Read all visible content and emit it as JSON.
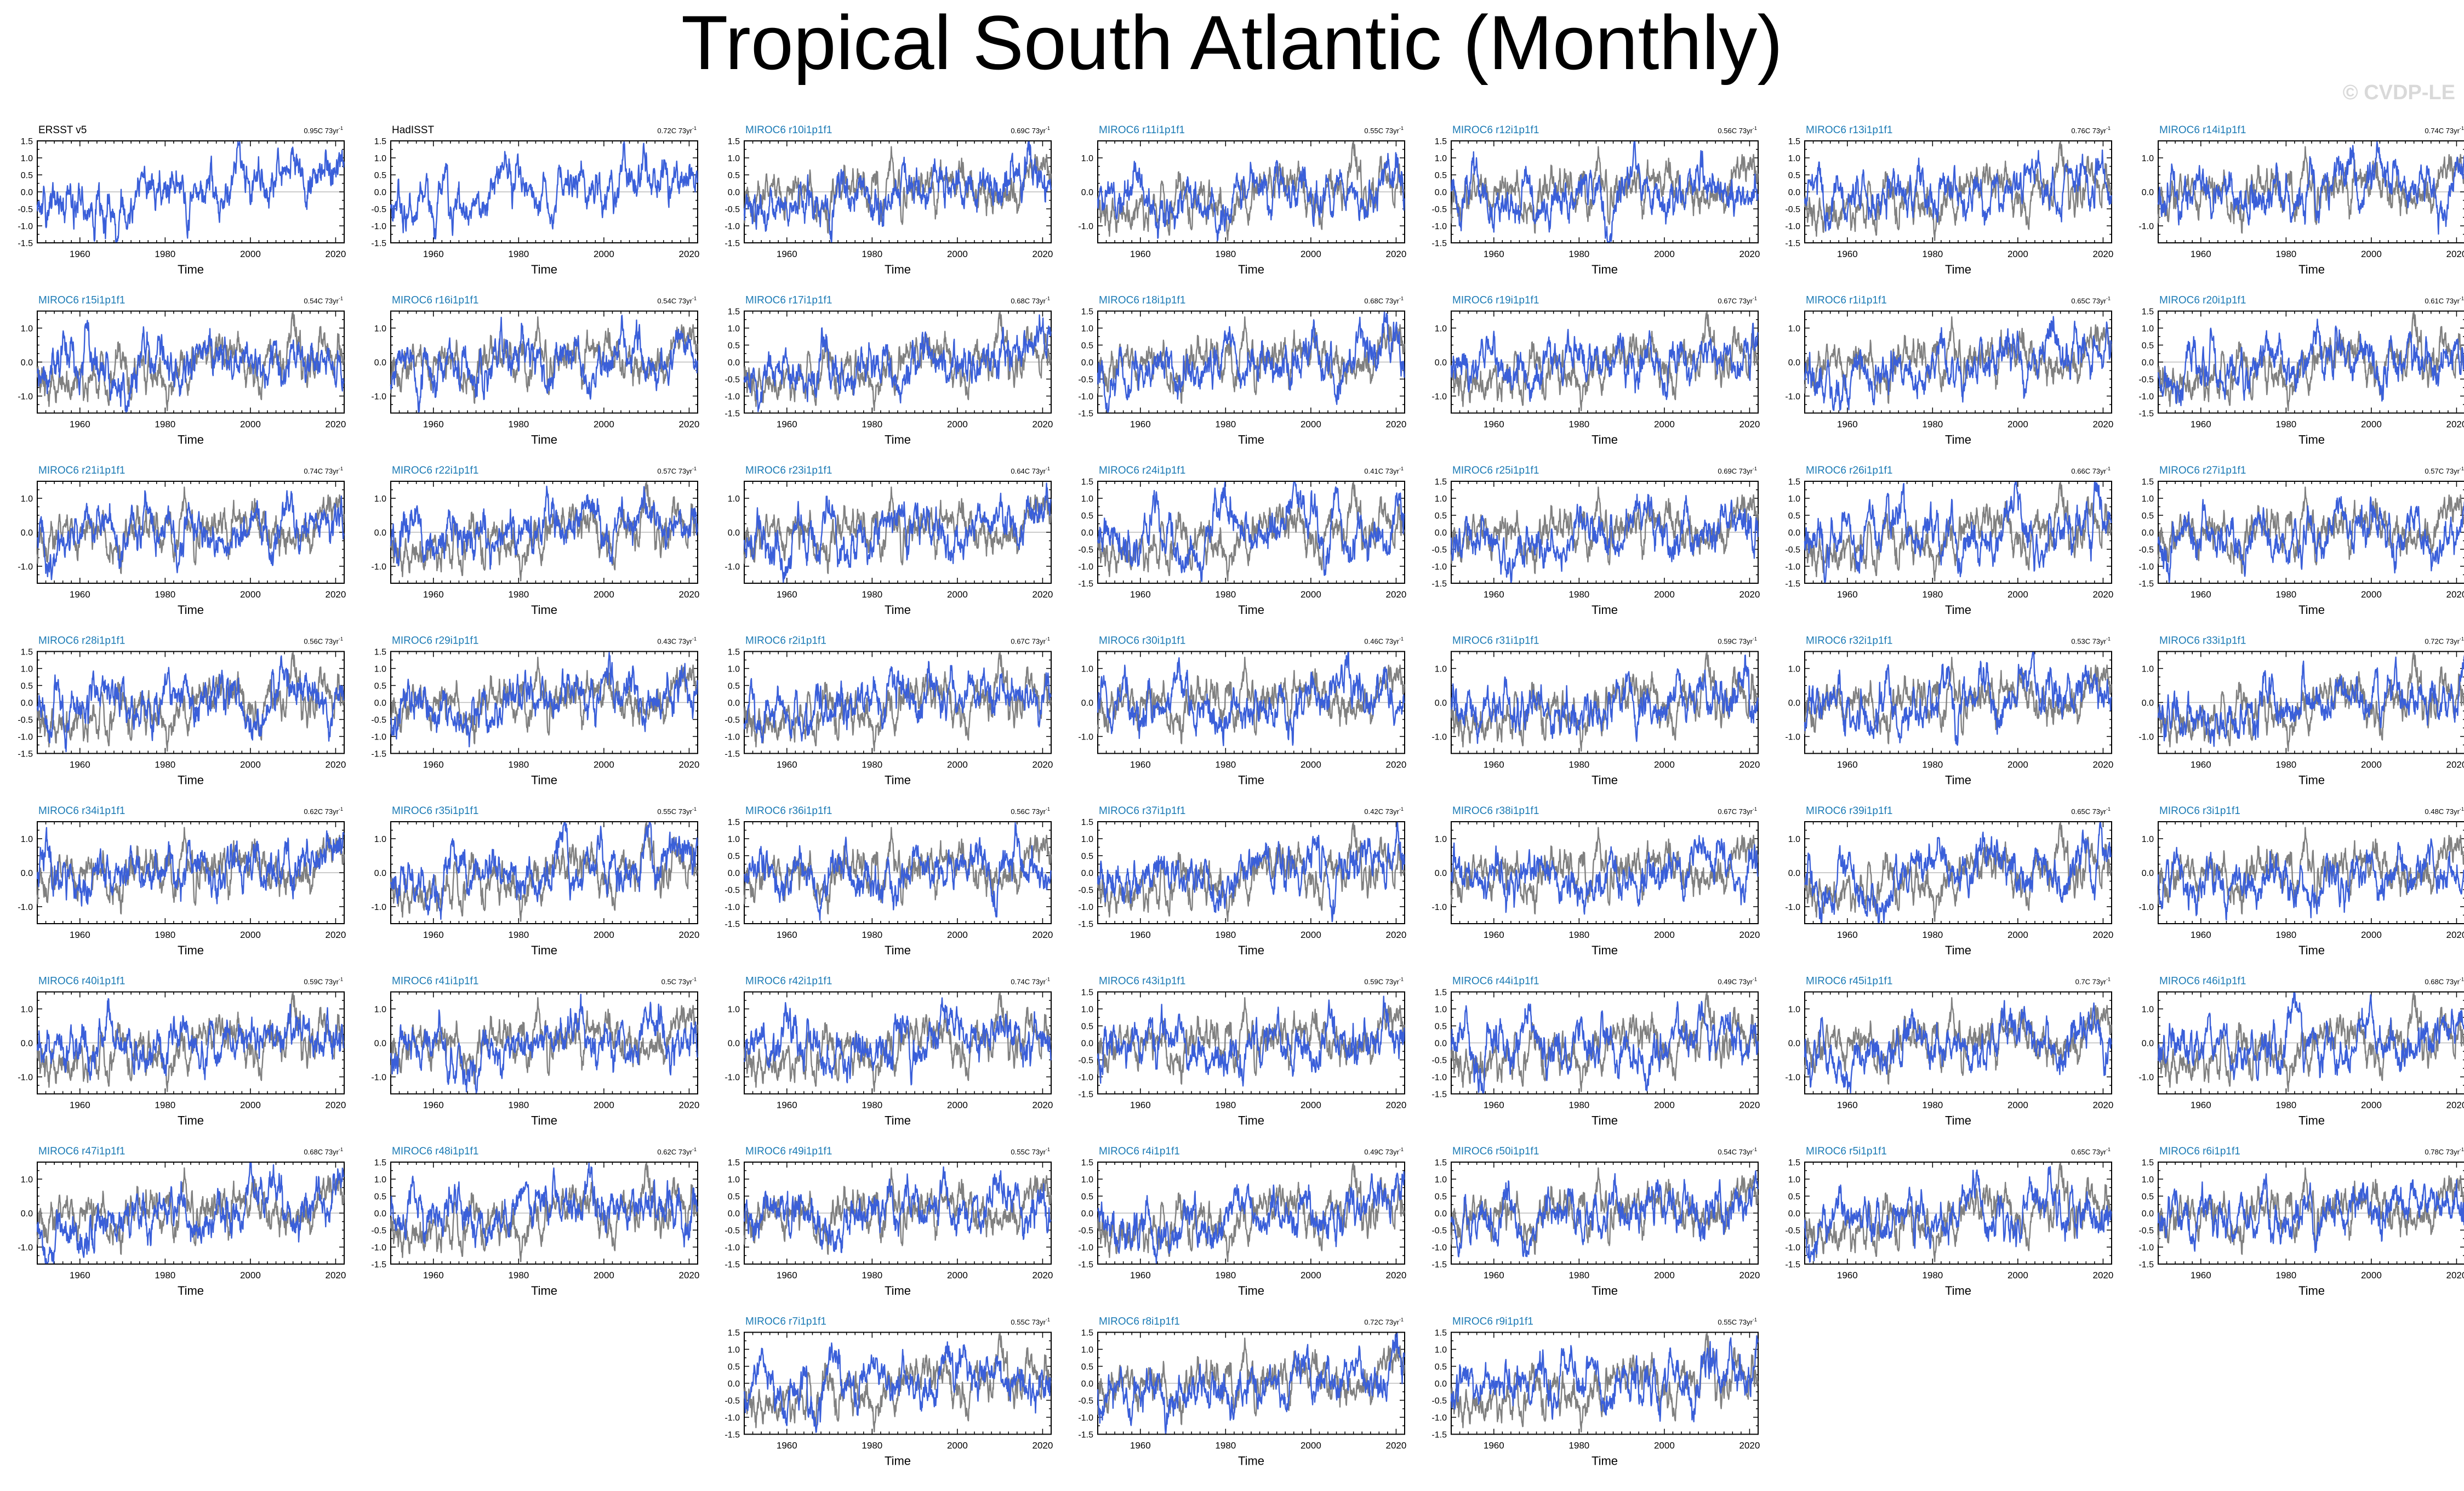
{
  "figure": {
    "title": "Tropical South Atlantic (Monthly)",
    "credit": "© CVDP-LE",
    "colors": {
      "model": "#3a5fd9",
      "observed": "#808080",
      "model_label": "#1a7ab5",
      "obs_label": "#000000",
      "axis": "#000000"
    }
  },
  "chart_data": {
    "type": "line",
    "description_axes": "shared",
    "xlabel": "Time",
    "xlim": [
      1950,
      2022
    ],
    "xticks": [
      1960,
      1980,
      2000,
      2020
    ],
    "ylim": [
      -1.5,
      1.5
    ],
    "yticks_fine": [
      "1.5",
      "1.0",
      "0.5",
      "0.0",
      "-0.5",
      "-1.0",
      "-1.5"
    ],
    "yticks_coarse": [
      "1.0",
      "0.0",
      "-1.0"
    ],
    "trend_unit": "73yr",
    "panels": [
      {
        "name": "ERSST v5",
        "trend": "0.95C 73yr",
        "obs": true,
        "yfine": true
      },
      {
        "name": "HadISST",
        "trend": "0.72C 73yr",
        "obs": true,
        "yfine": true
      },
      {
        "name": "MIROC6 r10i1p1f1",
        "trend": "0.69C 73yr",
        "yfine": true
      },
      {
        "name": "MIROC6 r11i1p1f1",
        "trend": "0.55C 73yr",
        "yfine": false
      },
      {
        "name": "MIROC6 r12i1p1f1",
        "trend": "0.56C 73yr",
        "yfine": true
      },
      {
        "name": "MIROC6 r13i1p1f1",
        "trend": "0.76C 73yr",
        "yfine": true
      },
      {
        "name": "MIROC6 r14i1p1f1",
        "trend": "0.74C 73yr",
        "yfine": false
      },
      {
        "name": "MIROC6 r15i1p1f1",
        "trend": "0.54C 73yr",
        "yfine": false
      },
      {
        "name": "MIROC6 r16i1p1f1",
        "trend": "0.54C 73yr",
        "yfine": false
      },
      {
        "name": "MIROC6 r17i1p1f1",
        "trend": "0.68C 73yr",
        "yfine": true
      },
      {
        "name": "MIROC6 r18i1p1f1",
        "trend": "0.68C 73yr",
        "yfine": true
      },
      {
        "name": "MIROC6 r19i1p1f1",
        "trend": "0.67C 73yr",
        "yfine": false
      },
      {
        "name": "MIROC6 r1i1p1f1",
        "trend": "0.65C 73yr",
        "yfine": false
      },
      {
        "name": "MIROC6 r20i1p1f1",
        "trend": "0.61C 73yr",
        "yfine": true
      },
      {
        "name": "MIROC6 r21i1p1f1",
        "trend": "0.74C 73yr",
        "yfine": false
      },
      {
        "name": "MIROC6 r22i1p1f1",
        "trend": "0.57C 73yr",
        "yfine": false
      },
      {
        "name": "MIROC6 r23i1p1f1",
        "trend": "0.64C 73yr",
        "yfine": false
      },
      {
        "name": "MIROC6 r24i1p1f1",
        "trend": "0.41C 73yr",
        "yfine": true
      },
      {
        "name": "MIROC6 r25i1p1f1",
        "trend": "0.69C 73yr",
        "yfine": true
      },
      {
        "name": "MIROC6 r26i1p1f1",
        "trend": "0.66C 73yr",
        "yfine": true
      },
      {
        "name": "MIROC6 r27i1p1f1",
        "trend": "0.57C 73yr",
        "yfine": true
      },
      {
        "name": "MIROC6 r28i1p1f1",
        "trend": "0.56C 73yr",
        "yfine": true
      },
      {
        "name": "MIROC6 r29i1p1f1",
        "trend": "0.43C 73yr",
        "yfine": true
      },
      {
        "name": "MIROC6 r2i1p1f1",
        "trend": "0.67C 73yr",
        "yfine": true
      },
      {
        "name": "MIROC6 r30i1p1f1",
        "trend": "0.46C 73yr",
        "yfine": false
      },
      {
        "name": "MIROC6 r31i1p1f1",
        "trend": "0.59C 73yr",
        "yfine": false
      },
      {
        "name": "MIROC6 r32i1p1f1",
        "trend": "0.53C 73yr",
        "yfine": false
      },
      {
        "name": "MIROC6 r33i1p1f1",
        "trend": "0.72C 73yr",
        "yfine": false
      },
      {
        "name": "MIROC6 r34i1p1f1",
        "trend": "0.62C 73yr",
        "yfine": false
      },
      {
        "name": "MIROC6 r35i1p1f1",
        "trend": "0.55C 73yr",
        "yfine": false
      },
      {
        "name": "MIROC6 r36i1p1f1",
        "trend": "0.56C 73yr",
        "yfine": true
      },
      {
        "name": "MIROC6 r37i1p1f1",
        "trend": "0.42C 73yr",
        "yfine": true
      },
      {
        "name": "MIROC6 r38i1p1f1",
        "trend": "0.67C 73yr",
        "yfine": false
      },
      {
        "name": "MIROC6 r39i1p1f1",
        "trend": "0.65C 73yr",
        "yfine": false
      },
      {
        "name": "MIROC6 r3i1p1f1",
        "trend": "0.48C 73yr",
        "yfine": false
      },
      {
        "name": "MIROC6 r40i1p1f1",
        "trend": "0.59C 73yr",
        "yfine": false
      },
      {
        "name": "MIROC6 r41i1p1f1",
        "trend": "0.5C 73yr",
        "yfine": false
      },
      {
        "name": "MIROC6 r42i1p1f1",
        "trend": "0.74C 73yr",
        "yfine": false
      },
      {
        "name": "MIROC6 r43i1p1f1",
        "trend": "0.59C 73yr",
        "yfine": true
      },
      {
        "name": "MIROC6 r44i1p1f1",
        "trend": "0.49C 73yr",
        "yfine": true
      },
      {
        "name": "MIROC6 r45i1p1f1",
        "trend": "0.7C 73yr",
        "yfine": false
      },
      {
        "name": "MIROC6 r46i1p1f1",
        "trend": "0.68C 73yr",
        "yfine": false
      },
      {
        "name": "MIROC6 r47i1p1f1",
        "trend": "0.68C 73yr",
        "yfine": false
      },
      {
        "name": "MIROC6 r48i1p1f1",
        "trend": "0.62C 73yr",
        "yfine": true
      },
      {
        "name": "MIROC6 r49i1p1f1",
        "trend": "0.55C 73yr",
        "yfine": true
      },
      {
        "name": "MIROC6 r4i1p1f1",
        "trend": "0.49C 73yr",
        "yfine": true
      },
      {
        "name": "MIROC6 r50i1p1f1",
        "trend": "0.54C 73yr",
        "yfine": true
      },
      {
        "name": "MIROC6 r5i1p1f1",
        "trend": "0.65C 73yr",
        "yfine": true
      },
      {
        "name": "MIROC6 r6i1p1f1",
        "trend": "0.78C 73yr",
        "yfine": true
      },
      {
        "name": "MIROC6 r7i1p1f1",
        "trend": "0.55C 73yr",
        "yfine": true
      },
      {
        "name": "MIROC6 r8i1p1f1",
        "trend": "0.72C 73yr",
        "yfine": true
      },
      {
        "name": "MIROC6 r9i1p1f1",
        "trend": "0.55C 73yr",
        "yfine": true
      }
    ]
  }
}
